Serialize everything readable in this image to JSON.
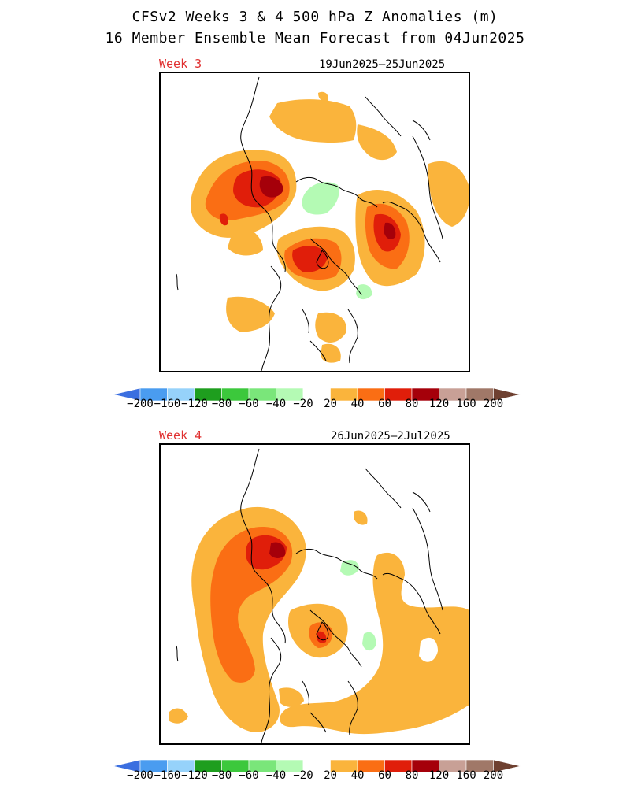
{
  "title_line1": "CFSv2 Weeks 3 & 4 500 hPa Z Anomalies (m)",
  "title_line2": "16 Member Ensemble Mean Forecast from 04Jun2025",
  "panels": [
    {
      "label": "Week 3",
      "dates": "19Jun2025–25Jun2025"
    },
    {
      "label": "Week 4",
      "dates": "26Jun2025—2Jul2025"
    }
  ],
  "colorbar": {
    "labels": [
      "−200",
      "−160",
      "−120",
      "−80",
      "−60",
      "−40",
      "−20",
      "20",
      "40",
      "60",
      "80",
      "120",
      "160",
      "200"
    ],
    "colors": [
      "#3b6fe0",
      "#4a9cf0",
      "#96d2fa",
      "#1e9e1e",
      "#3cc83c",
      "#7ae67a",
      "#b4fab4",
      "#ffffff",
      "#fab43c",
      "#fa6e14",
      "#e01e0a",
      "#a5000a",
      "#c8a096",
      "#a07868",
      "#6e4030"
    ]
  },
  "colors": {
    "label_red": "#e03030",
    "anomaly_20_40": "#fab43c",
    "anomaly_40_60": "#fa6e14",
    "anomaly_60_80": "#e01e0a",
    "anomaly_80_120": "#a5000a",
    "anomaly_neg_20_40": "#b4fab4"
  }
}
